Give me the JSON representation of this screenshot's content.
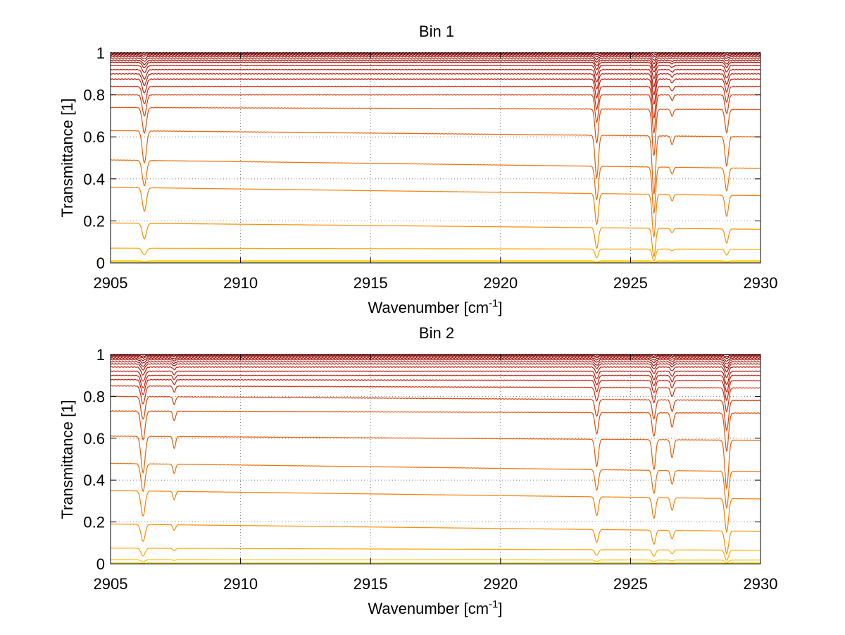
{
  "chart_data": [
    {
      "type": "line",
      "title": "Bin 1",
      "xlabel": "Wavenumber [cm",
      "xlabel_sup": "-1",
      "xlabel_end": "]",
      "ylabel": "Transmittance [1]",
      "xlim": [
        2905,
        2930
      ],
      "ylim": [
        0,
        1
      ],
      "xticks": [
        2905,
        2910,
        2915,
        2920,
        2925,
        2930
      ],
      "yticks": [
        0,
        0.2,
        0.4,
        0.6,
        0.8,
        1
      ],
      "xtick_labels": [
        "2905",
        "2910",
        "2915",
        "2920",
        "2925",
        "2930"
      ],
      "ytick_labels": [
        "0",
        "0.2",
        "0.4",
        "0.6",
        "0.8",
        "1"
      ],
      "grid": true,
      "series_baselines": [
        1.0,
        0.995,
        0.99,
        0.983,
        0.975,
        0.965,
        0.955,
        0.94,
        0.92,
        0.9,
        0.875,
        0.84,
        0.8,
        0.74,
        0.63,
        0.49,
        0.36,
        0.19,
        0.07,
        0.01,
        0.005
      ],
      "series_end_values": [
        1.0,
        0.995,
        0.99,
        0.983,
        0.975,
        0.965,
        0.955,
        0.94,
        0.92,
        0.9,
        0.875,
        0.84,
        0.8,
        0.73,
        0.6,
        0.45,
        0.32,
        0.16,
        0.065,
        0.01,
        0.005
      ],
      "absorption_lines": [
        {
          "x": 2906.3,
          "width": 0.11,
          "strength": 0.22
        },
        {
          "x": 2923.7,
          "width": 0.09,
          "strength": 0.29
        },
        {
          "x": 2925.9,
          "width": 0.09,
          "strength": 0.4
        },
        {
          "x": 2926.6,
          "width": 0.07,
          "strength": 0.06
        },
        {
          "x": 2928.7,
          "width": 0.09,
          "strength": 0.2
        }
      ]
    },
    {
      "type": "line",
      "title": "Bin 2",
      "xlabel": "Wavenumber [cm",
      "xlabel_sup": "-1",
      "xlabel_end": "]",
      "ylabel": "Transmittance [1]",
      "xlim": [
        2905,
        2930
      ],
      "ylim": [
        0,
        1
      ],
      "xticks": [
        2905,
        2910,
        2915,
        2920,
        2925,
        2930
      ],
      "yticks": [
        0,
        0.2,
        0.4,
        0.6,
        0.8,
        1
      ],
      "xtick_labels": [
        "2905",
        "2910",
        "2915",
        "2920",
        "2925",
        "2930"
      ],
      "ytick_labels": [
        "0",
        "0.2",
        "0.4",
        "0.6",
        "0.8",
        "1"
      ],
      "grid": true,
      "series_baselines": [
        1.0,
        0.995,
        0.99,
        0.983,
        0.975,
        0.965,
        0.955,
        0.94,
        0.92,
        0.9,
        0.88,
        0.85,
        0.8,
        0.73,
        0.61,
        0.48,
        0.35,
        0.19,
        0.075,
        0.02,
        0.005
      ],
      "series_end_values": [
        1.0,
        0.995,
        0.99,
        0.983,
        0.975,
        0.965,
        0.955,
        0.94,
        0.92,
        0.9,
        0.875,
        0.84,
        0.78,
        0.72,
        0.59,
        0.44,
        0.31,
        0.155,
        0.065,
        0.018,
        0.005
      ],
      "absorption_lines": [
        {
          "x": 2906.25,
          "width": 0.11,
          "strength": 0.24
        },
        {
          "x": 2907.45,
          "width": 0.07,
          "strength": 0.08
        },
        {
          "x": 2923.7,
          "width": 0.09,
          "strength": 0.18
        },
        {
          "x": 2925.9,
          "width": 0.09,
          "strength": 0.2
        },
        {
          "x": 2926.6,
          "width": 0.08,
          "strength": 0.12
        },
        {
          "x": 2928.7,
          "width": 0.1,
          "strength": 0.32
        }
      ]
    }
  ],
  "colors": {
    "line_low": "#8b0000",
    "line_mid": "#c8200e",
    "line_high": "#ff8c00",
    "line_top": "#ffd700",
    "grid": "#666666",
    "axis": "#000000"
  }
}
